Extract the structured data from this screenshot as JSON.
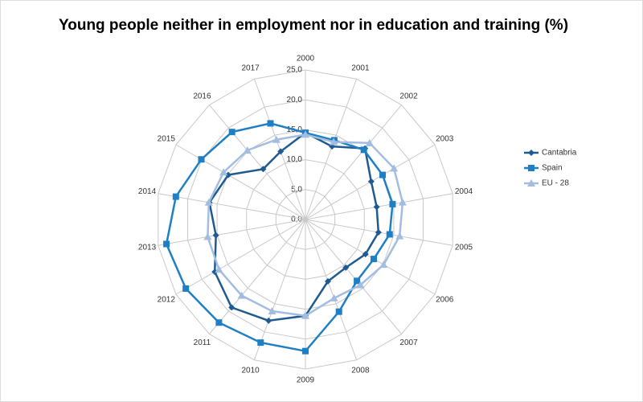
{
  "chart_data": {
    "type": "radar",
    "title": "Young people neither in employment nor in education and training  (%)",
    "categories": [
      "2000",
      "2001",
      "2002",
      "2003",
      "2004",
      "2005",
      "2006",
      "2007",
      "2008",
      "2009",
      "2010",
      "2011",
      "2012",
      "2013",
      "2014",
      "2015",
      "2016",
      "2017"
    ],
    "series": [
      {
        "name": "Cantabria",
        "color": "#1f5b91",
        "marker": "diamond",
        "values": [
          14.5,
          13.0,
          15.5,
          12.7,
          12.1,
          12.4,
          11.6,
          10.5,
          11.0,
          16.1,
          18.0,
          19.2,
          17.5,
          15.2,
          16.3,
          14.9,
          11.0,
          12.1
        ]
      },
      {
        "name": "Spain",
        "color": "#1f7fc4",
        "marker": "square",
        "values": [
          14.5,
          14.1,
          15.2,
          14.9,
          14.8,
          14.3,
          13.2,
          13.4,
          16.4,
          22.0,
          21.9,
          22.5,
          23.1,
          23.6,
          22.0,
          20.1,
          19.1,
          17.1
        ]
      },
      {
        "name": "EU - 28",
        "color": "#a3bde0",
        "marker": "triangle",
        "values": [
          14.2,
          13.8,
          16.7,
          17.1,
          16.5,
          16.0,
          15.1,
          14.3,
          14.0,
          16.1,
          16.3,
          16.6,
          16.7,
          16.6,
          16.4,
          15.8,
          15.1,
          14.2
        ]
      }
    ],
    "rlim": [
      0,
      25
    ],
    "rticks": [
      {
        "value": 0,
        "label": "0,0"
      },
      {
        "value": 5,
        "label": "5,0"
      },
      {
        "value": 10,
        "label": "10,0"
      },
      {
        "value": 15,
        "label": "15,0"
      },
      {
        "value": 20,
        "label": "20,0"
      },
      {
        "value": 25,
        "label": "25,0"
      }
    ],
    "grid": true,
    "legend": "right"
  }
}
